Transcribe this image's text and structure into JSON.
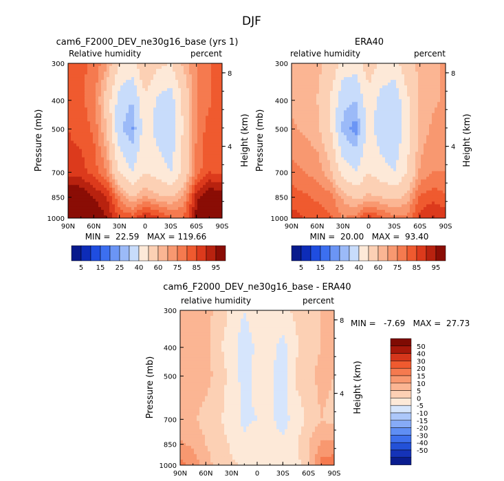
{
  "figure": {
    "title": "DJF"
  },
  "colors": {
    "levels_abs": [
      "#081a8c",
      "#0d2cb8",
      "#1f4de0",
      "#3c6ff0",
      "#6b95f5",
      "#9bbaf8",
      "#c8dcfb",
      "#fde9d8",
      "#fcd0b4",
      "#fbb593",
      "#f89870",
      "#f57a4f",
      "#ef5a2f",
      "#dc3a1c",
      "#b8220f",
      "#8a0d05"
    ],
    "levels_diff": [
      "#0a1d8f",
      "#1533b8",
      "#2351d8",
      "#3d6fec",
      "#5f8ef4",
      "#86abf7",
      "#acc7fa",
      "#d6e5fc",
      "#fde9d8",
      "#fcd0b4",
      "#fbb593",
      "#f89870",
      "#f57a4f",
      "#ef5a2f",
      "#d5361b",
      "#a6180a",
      "#7f0b03"
    ]
  },
  "panels": [
    {
      "title": "cam6_F2000_DEV_ne30g16_base (yrs 1)",
      "left_label": "Relative humidity",
      "right_label": "percent",
      "ylabel": "Pressure (mb)",
      "y2label": "Height (km)",
      "stats": "MIN =  22.59   MAX = 119.66"
    },
    {
      "title": "ERA40",
      "left_label": "relative humidity",
      "right_label": "percent",
      "ylabel": "Pressure (mb)",
      "y2label": "Height (km)",
      "stats": "MIN =  20.00   MAX =  93.40"
    },
    {
      "title": "cam6_F2000_DEV_ne30g16_base - ERA40",
      "left_label": "relative humidity",
      "right_label": "percent",
      "ylabel": "Pressure (mb)",
      "y2label": "Height (km)",
      "stats": "MIN =   -7.69   MAX =  27.73"
    }
  ],
  "colorbar_abs_labels": [
    "5",
    "15",
    "25",
    "40",
    "60",
    "75",
    "85",
    "95"
  ],
  "colorbar_diff_labels": [
    "50",
    "40",
    "30",
    "20",
    "15",
    "10",
    "5",
    "0",
    "-5",
    "-10",
    "-15",
    "-20",
    "-30",
    "-40",
    "-50"
  ],
  "chart_data": [
    {
      "type": "heatmap",
      "title": "cam6_F2000_DEV_ne30g16_base (yrs 1)",
      "subtitle": "Relative humidity",
      "units": "percent",
      "xlabel": "",
      "ylabel": "Pressure (mb)",
      "y2label": "Height (km)",
      "x_ticks": [
        "90N",
        "60N",
        "30N",
        "0",
        "30S",
        "60S",
        "90S"
      ],
      "y_ticks": [
        "300",
        "400",
        "500",
        "700",
        "850",
        "1000"
      ],
      "y2_ticks": [
        "8",
        "4"
      ],
      "ylim": [
        1000,
        300
      ],
      "min": 22.59,
      "max": 119.66,
      "x": [
        -90,
        -75,
        -60,
        -45,
        -30,
        -15,
        0,
        15,
        30,
        45,
        60,
        75,
        90
      ],
      "y": [
        1000,
        850,
        700,
        500,
        400,
        300
      ],
      "z": [
        [
          105,
          100,
          95,
          90,
          80,
          78,
          86,
          82,
          76,
          75,
          92,
          110,
          115
        ],
        [
          98,
          96,
          90,
          86,
          70,
          60,
          66,
          62,
          60,
          66,
          88,
          96,
          94
        ],
        [
          82,
          82,
          78,
          70,
          50,
          40,
          50,
          45,
          40,
          52,
          72,
          80,
          78
        ],
        [
          80,
          78,
          74,
          60,
          32,
          24,
          46,
          36,
          32,
          52,
          70,
          78,
          78
        ],
        [
          78,
          76,
          72,
          56,
          35,
          30,
          48,
          38,
          35,
          52,
          70,
          74,
          78
        ],
        [
          76,
          76,
          74,
          66,
          50,
          46,
          60,
          52,
          50,
          62,
          70,
          74,
          80
        ]
      ],
      "colorbar_levels": [
        5,
        10,
        15,
        20,
        25,
        30,
        40,
        50,
        60,
        65,
        70,
        75,
        80,
        85,
        90,
        95
      ]
    },
    {
      "type": "heatmap",
      "title": "ERA40",
      "subtitle": "relative humidity",
      "units": "percent",
      "xlabel": "",
      "ylabel": "Pressure (mb)",
      "y2label": "Height (km)",
      "x_ticks": [
        "90N",
        "60N",
        "30N",
        "0",
        "30S",
        "60S",
        "90S"
      ],
      "y_ticks": [
        "300",
        "400",
        "500",
        "700",
        "850",
        "1000"
      ],
      "y2_ticks": [
        "8",
        "4"
      ],
      "ylim": [
        1000,
        300
      ],
      "min": 20.0,
      "max": 93.4,
      "x": [
        -90,
        -75,
        -60,
        -45,
        -30,
        -15,
        0,
        15,
        30,
        45,
        60,
        75,
        90
      ],
      "y": [
        1000,
        850,
        700,
        500,
        400,
        300
      ],
      "z": [
        [
          82,
          80,
          78,
          76,
          70,
          72,
          82,
          76,
          72,
          72,
          82,
          86,
          84
        ],
        [
          78,
          76,
          74,
          72,
          64,
          58,
          62,
          60,
          58,
          62,
          76,
          78,
          76
        ],
        [
          72,
          70,
          68,
          62,
          46,
          40,
          50,
          44,
          40,
          50,
          66,
          70,
          70
        ],
        [
          66,
          64,
          62,
          52,
          28,
          22,
          44,
          34,
          30,
          46,
          62,
          66,
          68
        ],
        [
          64,
          62,
          60,
          50,
          32,
          30,
          46,
          36,
          32,
          48,
          62,
          64,
          66
        ],
        [
          62,
          62,
          62,
          58,
          46,
          44,
          56,
          48,
          46,
          56,
          62,
          64,
          66
        ]
      ],
      "colorbar_levels": [
        5,
        10,
        15,
        20,
        25,
        30,
        40,
        50,
        60,
        65,
        70,
        75,
        80,
        85,
        90,
        95
      ]
    },
    {
      "type": "heatmap",
      "title": "cam6_F2000_DEV_ne30g16_base - ERA40",
      "subtitle": "relative humidity",
      "units": "percent",
      "xlabel": "",
      "ylabel": "Pressure (mb)",
      "y2label": "Height (km)",
      "x_ticks": [
        "90N",
        "60N",
        "30N",
        "0",
        "30S",
        "60S",
        "90S"
      ],
      "y_ticks": [
        "300",
        "400",
        "500",
        "700",
        "850",
        "1000"
      ],
      "y2_ticks": [
        "8",
        "4"
      ],
      "ylim": [
        1000,
        300
      ],
      "min": -7.69,
      "max": 27.73,
      "x": [
        -90,
        -75,
        -60,
        -45,
        -30,
        -15,
        0,
        15,
        30,
        45,
        60,
        75,
        90
      ],
      "y": [
        1000,
        850,
        700,
        500,
        400,
        300
      ],
      "z": [
        [
          22,
          18,
          12,
          8,
          6,
          4,
          2,
          4,
          4,
          3,
          8,
          22,
          24
        ],
        [
          16,
          14,
          10,
          8,
          4,
          1,
          3,
          2,
          1,
          4,
          10,
          16,
          16
        ],
        [
          10,
          11,
          8,
          6,
          2,
          -1,
          0,
          1,
          -2,
          2,
          6,
          10,
          8
        ],
        [
          14,
          13,
          12,
          8,
          3,
          -2,
          2,
          1,
          -3,
          6,
          8,
          12,
          10
        ],
        [
          14,
          14,
          12,
          6,
          2,
          -3,
          1,
          2,
          -2,
          4,
          8,
          10,
          12
        ],
        [
          14,
          14,
          12,
          8,
          4,
          0,
          4,
          2,
          4,
          6,
          8,
          10,
          14
        ]
      ],
      "colorbar_levels": [
        -50,
        -40,
        -30,
        -20,
        -15,
        -10,
        -5,
        0,
        5,
        10,
        15,
        20,
        30,
        40,
        50
      ]
    }
  ]
}
